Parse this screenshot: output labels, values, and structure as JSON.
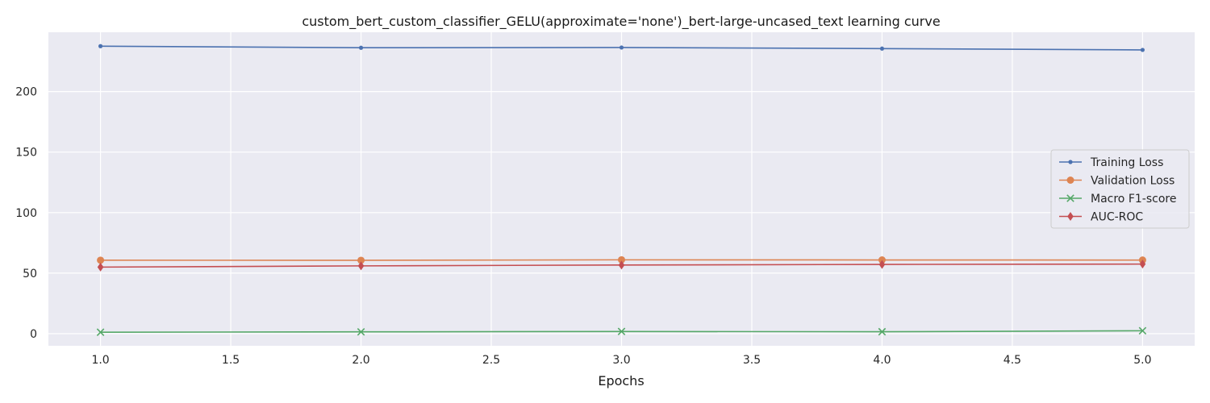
{
  "chart_data": {
    "type": "line",
    "title": "custom_bert_custom_classifier_GELU(approximate='none')_bert-large-uncased_text learning curve",
    "xlabel": "Epochs",
    "ylabel": "",
    "x": [
      1,
      2,
      3,
      4,
      5
    ],
    "xlim": [
      0.8,
      5.2
    ],
    "ylim": [
      -10,
      249
    ],
    "xticks": [
      "1.0",
      "1.5",
      "2.0",
      "2.5",
      "3.0",
      "3.5",
      "4.0",
      "4.5",
      "5.0"
    ],
    "yticks": [
      "0",
      "50",
      "100",
      "150",
      "200"
    ],
    "grid": true,
    "legend_position": "center-right",
    "series": [
      {
        "name": "Training Loss",
        "color": "#4c72b0",
        "marker": "point",
        "values": [
          237.5,
          236.2,
          236.4,
          235.5,
          234.4
        ]
      },
      {
        "name": "Validation Loss",
        "color": "#dd8452",
        "marker": "circle",
        "values": [
          60.7,
          60.6,
          61.0,
          60.9,
          60.8
        ]
      },
      {
        "name": "Macro F1-score",
        "color": "#55a868",
        "marker": "x",
        "values": [
          1.2,
          1.5,
          1.8,
          1.6,
          2.4
        ]
      },
      {
        "name": "AUC-ROC",
        "color": "#c44e52",
        "marker": "diamond",
        "values": [
          55.0,
          56.0,
          56.7,
          57.2,
          57.5
        ]
      }
    ]
  }
}
